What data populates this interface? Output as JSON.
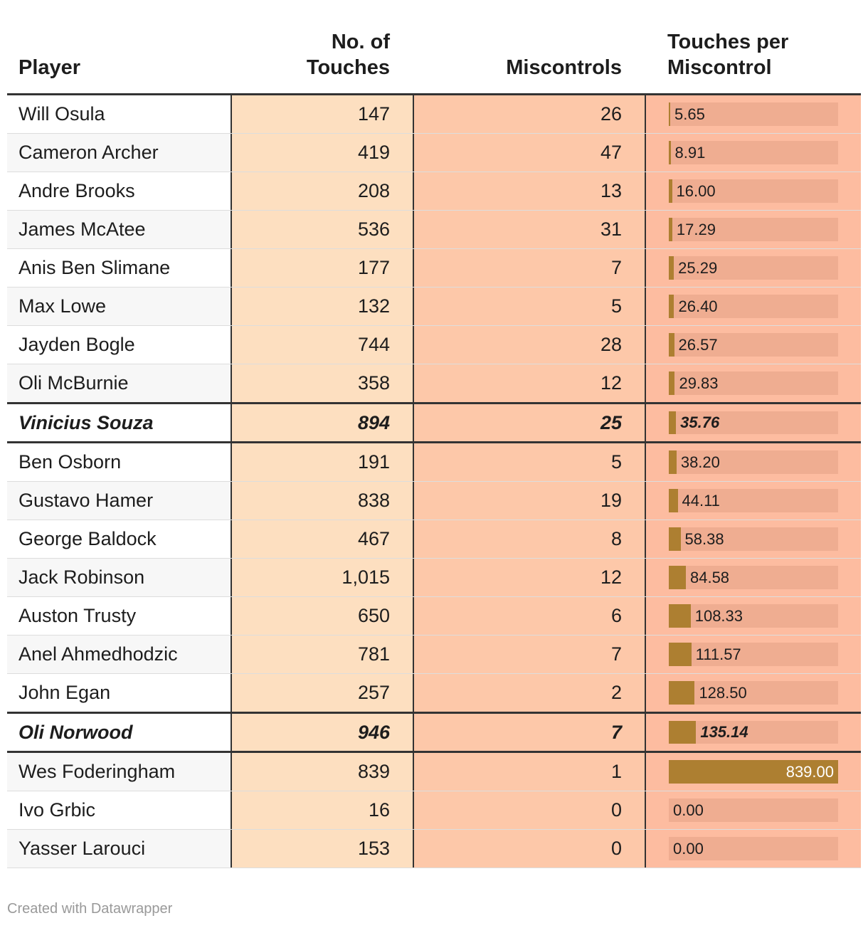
{
  "header": {
    "player": "Player",
    "touches": "No. of Touches",
    "touches_line1": "No. of",
    "touches_line2": "Touches",
    "miscontrols": "Miscontrols",
    "tpm_line1": "Touches per",
    "tpm_line2": "Miscontrol"
  },
  "colors": {
    "touches_bg": "#fddfc0",
    "miscontrols_bg": "#fdc8a9",
    "tpm_bg": "#fdbca0",
    "bar_track": "#efad91",
    "bar_fill": "#ad7f31"
  },
  "chart_data": {
    "type": "table",
    "columns": [
      "Player",
      "No. of Touches",
      "Miscontrols",
      "Touches per Miscontrol"
    ],
    "bar_column": "Touches per Miscontrol",
    "bar_range": [
      0,
      839
    ],
    "rows": [
      {
        "player": "Will Osula",
        "touches": "147",
        "miscontrols": "26",
        "tpm": "5.65",
        "tpm_value": 5.65,
        "highlight": false
      },
      {
        "player": "Cameron Archer",
        "touches": "419",
        "miscontrols": "47",
        "tpm": "8.91",
        "tpm_value": 8.91,
        "highlight": false
      },
      {
        "player": "Andre Brooks",
        "touches": "208",
        "miscontrols": "13",
        "tpm": "16.00",
        "tpm_value": 16.0,
        "highlight": false
      },
      {
        "player": "James McAtee",
        "touches": "536",
        "miscontrols": "31",
        "tpm": "17.29",
        "tpm_value": 17.29,
        "highlight": false
      },
      {
        "player": "Anis Ben Slimane",
        "touches": "177",
        "miscontrols": "7",
        "tpm": "25.29",
        "tpm_value": 25.29,
        "highlight": false
      },
      {
        "player": "Max Lowe",
        "touches": "132",
        "miscontrols": "5",
        "tpm": "26.40",
        "tpm_value": 26.4,
        "highlight": false
      },
      {
        "player": "Jayden Bogle",
        "touches": "744",
        "miscontrols": "28",
        "tpm": "26.57",
        "tpm_value": 26.57,
        "highlight": false
      },
      {
        "player": "Oli McBurnie",
        "touches": "358",
        "miscontrols": "12",
        "tpm": "29.83",
        "tpm_value": 29.83,
        "highlight": false
      },
      {
        "player": "Vinicius Souza",
        "touches": "894",
        "miscontrols": "25",
        "tpm": "35.76",
        "tpm_value": 35.76,
        "highlight": true
      },
      {
        "player": "Ben Osborn",
        "touches": "191",
        "miscontrols": "5",
        "tpm": "38.20",
        "tpm_value": 38.2,
        "highlight": false
      },
      {
        "player": "Gustavo Hamer",
        "touches": "838",
        "miscontrols": "19",
        "tpm": "44.11",
        "tpm_value": 44.11,
        "highlight": false
      },
      {
        "player": "George Baldock",
        "touches": "467",
        "miscontrols": "8",
        "tpm": "58.38",
        "tpm_value": 58.38,
        "highlight": false
      },
      {
        "player": "Jack Robinson",
        "touches": "1,015",
        "miscontrols": "12",
        "tpm": "84.58",
        "tpm_value": 84.58,
        "highlight": false
      },
      {
        "player": "Auston Trusty",
        "touches": "650",
        "miscontrols": "6",
        "tpm": "108.33",
        "tpm_value": 108.33,
        "highlight": false
      },
      {
        "player": "Anel Ahmedhodzic",
        "touches": "781",
        "miscontrols": "7",
        "tpm": "111.57",
        "tpm_value": 111.57,
        "highlight": false
      },
      {
        "player": "John Egan",
        "touches": "257",
        "miscontrols": "2",
        "tpm": "128.50",
        "tpm_value": 128.5,
        "highlight": false
      },
      {
        "player": "Oli Norwood",
        "touches": "946",
        "miscontrols": "7",
        "tpm": "135.14",
        "tpm_value": 135.14,
        "highlight": true
      },
      {
        "player": "Wes Foderingham",
        "touches": "839",
        "miscontrols": "1",
        "tpm": "839.00",
        "tpm_value": 839.0,
        "highlight": false
      },
      {
        "player": "Ivo Grbic",
        "touches": "16",
        "miscontrols": "0",
        "tpm": "0.00",
        "tpm_value": 0.0,
        "highlight": false
      },
      {
        "player": "Yasser Larouci",
        "touches": "153",
        "miscontrols": "0",
        "tpm": "0.00",
        "tpm_value": 0.0,
        "highlight": false
      }
    ]
  },
  "footer": {
    "credit": "Created with Datawrapper"
  }
}
